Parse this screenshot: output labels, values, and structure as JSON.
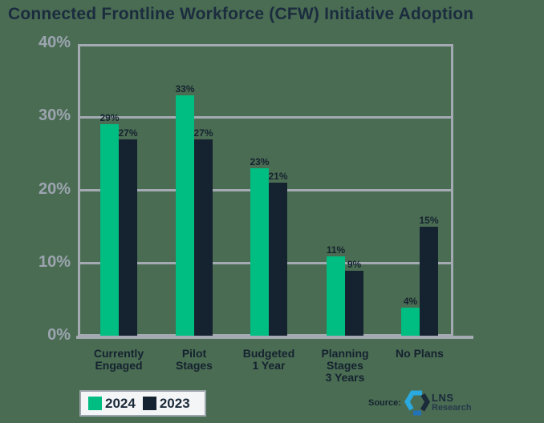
{
  "page": {
    "background_color": "#4A6C53"
  },
  "title": "Connected Frontline Workforce (CFW) Initiative Adoption",
  "chart_data": {
    "type": "bar",
    "title": "Connected Frontline Workforce (CFW) Initiative Adoption",
    "categories": [
      "Currently Engaged",
      "Pilot Stages",
      "Budgeted 1 Year",
      "Planning Stages 3 Years",
      "No Plans"
    ],
    "category_lines": [
      [
        "Currently",
        "Engaged"
      ],
      [
        "Pilot",
        "Stages"
      ],
      [
        "Budgeted",
        "1 Year"
      ],
      [
        "Planning",
        "Stages",
        "3 Years"
      ],
      [
        "No Plans"
      ]
    ],
    "series": [
      {
        "name": "2024",
        "color": "#00BD81",
        "values": [
          29,
          33,
          23,
          11,
          4
        ]
      },
      {
        "name": "2023",
        "color": "#15222F",
        "values": [
          27,
          27,
          21,
          9,
          15
        ]
      }
    ],
    "value_label_suffix": "%",
    "ylim": [
      0,
      40
    ],
    "yticks": [
      0,
      10,
      20,
      30,
      40
    ],
    "ytick_labels": [
      "0%",
      "10%",
      "20%",
      "30%",
      "40%"
    ],
    "grid": "horizontal gridlines at 10, 20, 30 with full plot border",
    "legend_position": "bottom-left",
    "colors": {
      "axis": "#A3AAB2",
      "tick_labels": "#9BA4AE",
      "bar_value_labels": "#15222F",
      "category_labels": "#15222F",
      "title": "#1B2C3E"
    }
  },
  "legend": {
    "items": [
      {
        "label": "2024",
        "color": "#00BD81"
      },
      {
        "label": "2023",
        "color": "#15222F"
      }
    ]
  },
  "source": {
    "label": "Source:",
    "brand_name": "LNS",
    "brand_sub": "Research",
    "logo_colors": {
      "cyan": "#2AA9DF",
      "navy": "#1C2B3A",
      "blue": "#2272B8"
    }
  }
}
